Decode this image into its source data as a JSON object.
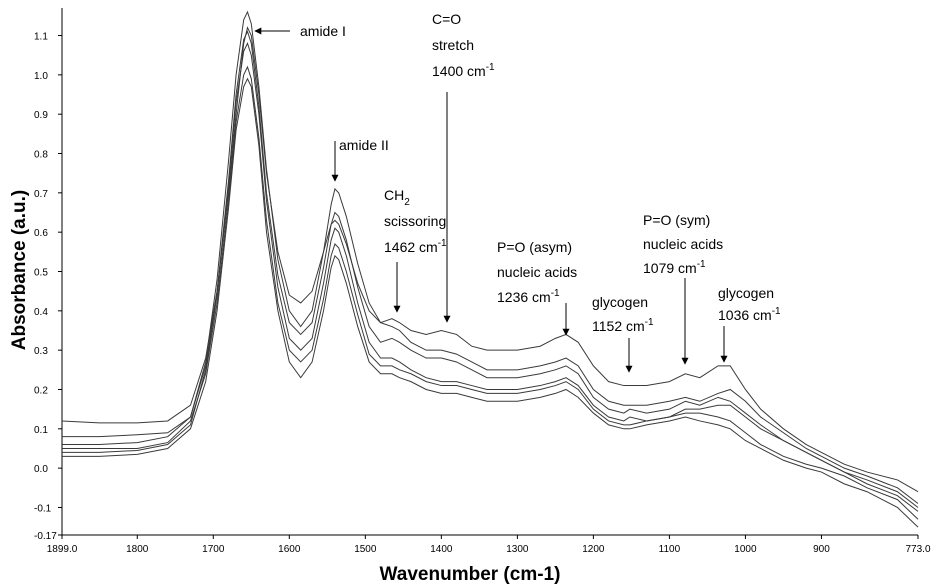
{
  "chart_data": {
    "type": "line",
    "x_label": "Wavenumber (cm-1)",
    "y_label": "Absorbance (a.u.)",
    "xlim": [
      1899,
      773
    ],
    "ylim": [
      -0.17,
      1.17
    ],
    "xticks": [
      {
        "value": 1899,
        "label": "1899.0"
      },
      1800,
      1700,
      1600,
      1500,
      1400,
      1300,
      1200,
      1100,
      1000,
      900,
      {
        "value": 773,
        "label": "773.0"
      }
    ],
    "yticks": [
      -0.17,
      -0.1,
      {
        "value": 0,
        "label": "0.0"
      },
      0.1,
      0.2,
      0.3,
      0.4,
      0.5,
      0.6,
      0.7,
      0.8,
      0.9,
      {
        "value": 1,
        "label": "1.0"
      },
      1.1
    ],
    "x": [
      1899,
      1850,
      1800,
      1760,
      1730,
      1710,
      1695,
      1680,
      1670,
      1660,
      1655,
      1650,
      1640,
      1630,
      1615,
      1600,
      1585,
      1570,
      1555,
      1545,
      1540,
      1535,
      1525,
      1510,
      1495,
      1480,
      1465,
      1455,
      1440,
      1420,
      1400,
      1380,
      1360,
      1340,
      1300,
      1270,
      1250,
      1236,
      1220,
      1200,
      1180,
      1160,
      1152,
      1130,
      1100,
      1079,
      1060,
      1036,
      1020,
      1000,
      980,
      950,
      920,
      900,
      870,
      840,
      800,
      773
    ],
    "series": [
      {
        "color": "#3a3a3a",
        "values": [
          0.12,
          0.115,
          0.115,
          0.12,
          0.16,
          0.28,
          0.45,
          0.7,
          0.9,
          1.08,
          1.12,
          1.1,
          0.95,
          0.75,
          0.55,
          0.44,
          0.42,
          0.45,
          0.55,
          0.62,
          0.63,
          0.62,
          0.57,
          0.47,
          0.4,
          0.37,
          0.38,
          0.37,
          0.35,
          0.34,
          0.35,
          0.34,
          0.31,
          0.3,
          0.3,
          0.31,
          0.33,
          0.34,
          0.32,
          0.26,
          0.22,
          0.21,
          0.21,
          0.21,
          0.22,
          0.24,
          0.23,
          0.26,
          0.26,
          0.2,
          0.15,
          0.1,
          0.06,
          0.04,
          0.01,
          -0.01,
          -0.03,
          -0.06
        ]
      },
      {
        "color": "#3a3a3a",
        "values": [
          0.06,
          0.06,
          0.065,
          0.08,
          0.13,
          0.27,
          0.48,
          0.78,
          1.0,
          1.14,
          1.16,
          1.13,
          0.97,
          0.76,
          0.53,
          0.4,
          0.36,
          0.4,
          0.55,
          0.67,
          0.71,
          0.7,
          0.64,
          0.52,
          0.42,
          0.37,
          0.36,
          0.35,
          0.32,
          0.3,
          0.3,
          0.29,
          0.27,
          0.25,
          0.25,
          0.26,
          0.27,
          0.28,
          0.26,
          0.2,
          0.17,
          0.16,
          0.16,
          0.16,
          0.17,
          0.18,
          0.17,
          0.19,
          0.2,
          0.17,
          0.13,
          0.09,
          0.05,
          0.03,
          0.0,
          -0.02,
          -0.05,
          -0.09
        ]
      },
      {
        "color": "#3a3a3a",
        "values": [
          0.04,
          0.04,
          0.045,
          0.06,
          0.11,
          0.25,
          0.44,
          0.72,
          0.93,
          1.06,
          1.08,
          1.05,
          0.9,
          0.68,
          0.46,
          0.33,
          0.3,
          0.33,
          0.47,
          0.58,
          0.61,
          0.6,
          0.54,
          0.42,
          0.32,
          0.28,
          0.28,
          0.27,
          0.25,
          0.23,
          0.22,
          0.22,
          0.21,
          0.2,
          0.2,
          0.21,
          0.22,
          0.23,
          0.21,
          0.16,
          0.13,
          0.12,
          0.13,
          0.12,
          0.13,
          0.15,
          0.15,
          0.16,
          0.16,
          0.13,
          0.1,
          0.07,
          0.04,
          0.02,
          -0.01,
          -0.03,
          -0.06,
          -0.1
        ]
      },
      {
        "color": "#3a3a3a",
        "values": [
          0.05,
          0.05,
          0.05,
          0.065,
          0.12,
          0.24,
          0.42,
          0.68,
          0.88,
          1.0,
          1.02,
          0.99,
          0.84,
          0.63,
          0.42,
          0.3,
          0.27,
          0.3,
          0.43,
          0.54,
          0.57,
          0.56,
          0.5,
          0.39,
          0.29,
          0.26,
          0.26,
          0.25,
          0.24,
          0.22,
          0.21,
          0.21,
          0.2,
          0.19,
          0.19,
          0.2,
          0.21,
          0.22,
          0.2,
          0.15,
          0.12,
          0.11,
          0.11,
          0.12,
          0.13,
          0.14,
          0.14,
          0.13,
          0.12,
          0.09,
          0.06,
          0.03,
          0.01,
          0.0,
          -0.02,
          -0.05,
          -0.08,
          -0.13
        ]
      },
      {
        "color": "#3a3a3a",
        "values": [
          0.03,
          0.03,
          0.035,
          0.05,
          0.1,
          0.22,
          0.4,
          0.66,
          0.86,
          0.97,
          0.99,
          0.97,
          0.82,
          0.6,
          0.4,
          0.27,
          0.23,
          0.27,
          0.4,
          0.51,
          0.54,
          0.53,
          0.47,
          0.36,
          0.27,
          0.24,
          0.24,
          0.23,
          0.22,
          0.2,
          0.19,
          0.19,
          0.18,
          0.17,
          0.17,
          0.18,
          0.19,
          0.2,
          0.18,
          0.14,
          0.11,
          0.1,
          0.1,
          0.11,
          0.12,
          0.13,
          0.12,
          0.11,
          0.1,
          0.07,
          0.05,
          0.02,
          0.0,
          -0.01,
          -0.04,
          -0.06,
          -0.1,
          -0.15
        ]
      },
      {
        "color": "#3a3a3a",
        "values": [
          0.08,
          0.08,
          0.085,
          0.09,
          0.13,
          0.26,
          0.45,
          0.73,
          0.95,
          1.09,
          1.11,
          1.08,
          0.92,
          0.7,
          0.49,
          0.37,
          0.34,
          0.37,
          0.51,
          0.62,
          0.65,
          0.64,
          0.58,
          0.46,
          0.36,
          0.32,
          0.33,
          0.32,
          0.3,
          0.28,
          0.28,
          0.27,
          0.25,
          0.23,
          0.23,
          0.24,
          0.25,
          0.26,
          0.24,
          0.18,
          0.15,
          0.14,
          0.15,
          0.14,
          0.15,
          0.17,
          0.16,
          0.18,
          0.17,
          0.14,
          0.11,
          0.07,
          0.04,
          0.02,
          -0.01,
          -0.04,
          -0.07,
          -0.11
        ]
      }
    ],
    "annotations": [
      {
        "lines": [
          {
            "text": "amide I"
          }
        ]
      },
      {
        "lines": [
          {
            "text": "amide II"
          }
        ]
      },
      {
        "lines": [
          {
            "text": "C=O"
          },
          {
            "text": "stretch"
          },
          {
            "text": "1400 cm",
            "sup": "-1"
          }
        ]
      },
      {
        "lines": [
          {
            "text": "CH",
            "sub": "2"
          },
          {
            "text": "scissoring"
          },
          {
            "text": "1462 cm",
            "sup": "-1"
          }
        ]
      },
      {
        "lines": [
          {
            "text": "P=O (asym)"
          },
          {
            "text": "nucleic acids"
          },
          {
            "text": "1236 cm",
            "sup": "-1"
          }
        ]
      },
      {
        "lines": [
          {
            "text": "glycogen"
          },
          {
            "text": "1152 cm",
            "sup": "-1"
          }
        ]
      },
      {
        "lines": [
          {
            "text": "P=O (sym)"
          },
          {
            "text": "nucleic acids"
          },
          {
            "text": "1079 cm",
            "sup": "-1"
          }
        ]
      },
      {
        "lines": [
          {
            "text": "glycogen"
          },
          {
            "text": "1036 cm",
            "sup": "-1"
          }
        ]
      }
    ]
  }
}
